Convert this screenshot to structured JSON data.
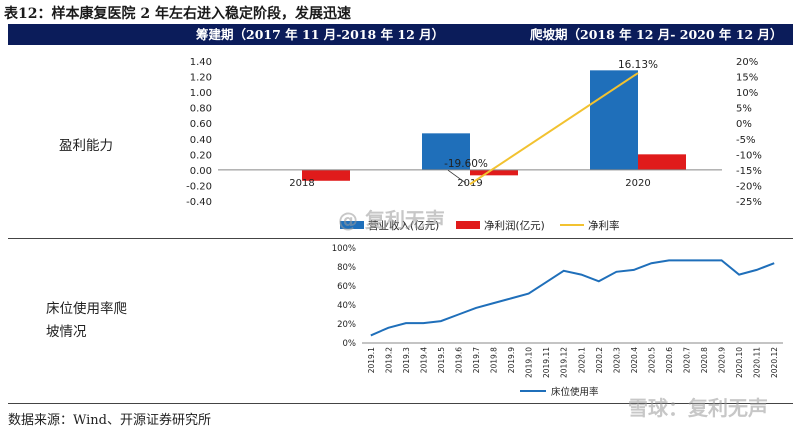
{
  "title": "表12：样本康复医院 2 年左右进入稳定阶段，发展迅速",
  "header": {
    "col1": "筹建期（2017 年 11 月-2018 年 12 月）",
    "col2": "爬坡期（2018 年 12 月- 2020 年 12 月）"
  },
  "rows": {
    "profit_label": "盈利能力",
    "bed_label_line1": "床位使用率爬",
    "bed_label_line2": "坡情况"
  },
  "source": "数据来源：Wind、开源证券研究所",
  "watermark": "@ 复利无声",
  "watermark2": "雪球：复利无声",
  "chart_data": [
    {
      "type": "bar",
      "categories": [
        "2018",
        "2019",
        "2020"
      ],
      "series": [
        {
          "name": "营业收入(亿元)",
          "axis": "left",
          "color": "#1f6fba",
          "values": [
            0.0,
            0.47,
            1.28
          ]
        },
        {
          "name": "净利润(亿元)",
          "axis": "left",
          "color": "#e01b1b",
          "values": [
            -0.14,
            -0.07,
            0.2
          ]
        },
        {
          "name": "净利率",
          "axis": "right",
          "type": "line",
          "color": "#f2c230",
          "values": [
            null,
            -19.6,
            16.13
          ]
        }
      ],
      "left_axis": {
        "ylim": [
          -0.4,
          1.4
        ],
        "ticks": [
          "-0.40",
          "-0.20",
          "0.00",
          "0.20",
          "0.40",
          "0.60",
          "0.80",
          "1.00",
          "1.20",
          "1.40"
        ]
      },
      "right_axis": {
        "ylim": [
          -25,
          20
        ],
        "ticks": [
          "-25%",
          "-20%",
          "-15%",
          "-10%",
          "-5%",
          "0%",
          "5%",
          "10%",
          "15%",
          "20%"
        ]
      },
      "annotations": [
        "-19.60%",
        "16.13%"
      ],
      "legend": [
        "营业收入(亿元)",
        "净利润(亿元)",
        "净利率"
      ]
    },
    {
      "type": "line",
      "categories": [
        "2019.1",
        "2019.2",
        "2019.3",
        "2019.4",
        "2019.5",
        "2019.6",
        "2019.7",
        "2019.8",
        "2019.9",
        "2019.10",
        "2019.11",
        "2019.12",
        "2020.1",
        "2020.2",
        "2020.3",
        "2020.4",
        "2020.5",
        "2020.6",
        "2020.7",
        "2020.8",
        "2020.9",
        "2020.10",
        "2020.11",
        "2020.12"
      ],
      "series": [
        {
          "name": "床位使用率",
          "color": "#1f6fba",
          "values": [
            8,
            16,
            21,
            21,
            23,
            30,
            37,
            42,
            47,
            52,
            64,
            76,
            72,
            65,
            75,
            77,
            84,
            87,
            87,
            87,
            87,
            72,
            77,
            84
          ]
        }
      ],
      "ylim": [
        0,
        100
      ],
      "ticks": [
        "0%",
        "20%",
        "40%",
        "60%",
        "80%",
        "100%"
      ],
      "legend": [
        "床位使用率"
      ]
    }
  ]
}
